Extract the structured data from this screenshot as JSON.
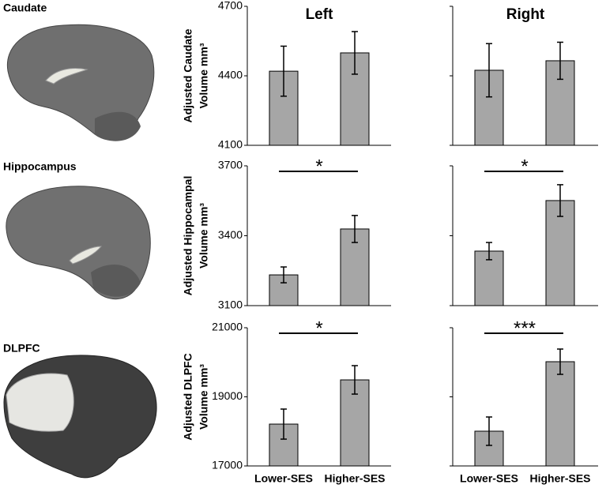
{
  "regions": [
    "Caudate",
    "Hippocampus",
    "DLPFC"
  ],
  "chart_data": [
    {
      "type": "bar",
      "title": "Left",
      "ylabel": [
        "Adjusted Caudate",
        "Volume mm³"
      ],
      "categories": [
        null,
        null
      ],
      "values": [
        4420,
        4499
      ],
      "errors": [
        108,
        92
      ],
      "color": "#a6a6a6",
      "ylim": [
        4100,
        4700
      ],
      "yticks": [
        4100,
        4400,
        4700
      ],
      "tick_labels": true
    },
    {
      "type": "bar",
      "title": "Right",
      "categories": [
        null,
        null
      ],
      "values": [
        4424,
        4465
      ],
      "errors": [
        115,
        80
      ],
      "color": "#a6a6a6",
      "ylim": [
        4100,
        4700
      ],
      "yticks": [
        4100,
        4400,
        4700
      ],
      "tick_labels": false
    },
    {
      "type": "bar",
      "ylabel": [
        "Adjusted Hippocampal",
        "Volume mm³"
      ],
      "categories": [
        null,
        null
      ],
      "values": [
        3232,
        3429
      ],
      "errors": [
        34,
        58
      ],
      "color": "#a6a6a6",
      "significance": "*",
      "ylim": [
        3100,
        3700
      ],
      "yticks": [
        3100,
        3400,
        3700
      ],
      "tick_labels": true
    },
    {
      "type": "bar",
      "categories": [
        null,
        null
      ],
      "values": [
        3334,
        3551
      ],
      "errors": [
        37,
        68
      ],
      "color": "#a6a6a6",
      "significance": "*",
      "ylim": [
        3100,
        3700
      ],
      "yticks": [
        3100,
        3400,
        3700
      ],
      "tick_labels": false
    },
    {
      "type": "bar",
      "ylabel": [
        "Adjusted DLPFC",
        "Volume mm³"
      ],
      "categories": [
        "Lower-SES",
        "Higher-SES"
      ],
      "values": [
        18211,
        19491
      ],
      "errors": [
        435,
        412
      ],
      "color": "#a6a6a6",
      "significance": "*",
      "ylim": [
        17000,
        21000
      ],
      "yticks": [
        17000,
        19000,
        21000
      ],
      "tick_labels": true
    },
    {
      "type": "bar",
      "categories": [
        "Lower-SES",
        "Higher-SES"
      ],
      "values": [
        18006,
        20017
      ],
      "errors": [
        411,
        366
      ],
      "color": "#a6a6a6",
      "significance": "***",
      "ylim": [
        17000,
        21000
      ],
      "yticks": [
        17000,
        19000,
        21000
      ],
      "tick_labels": false
    }
  ]
}
